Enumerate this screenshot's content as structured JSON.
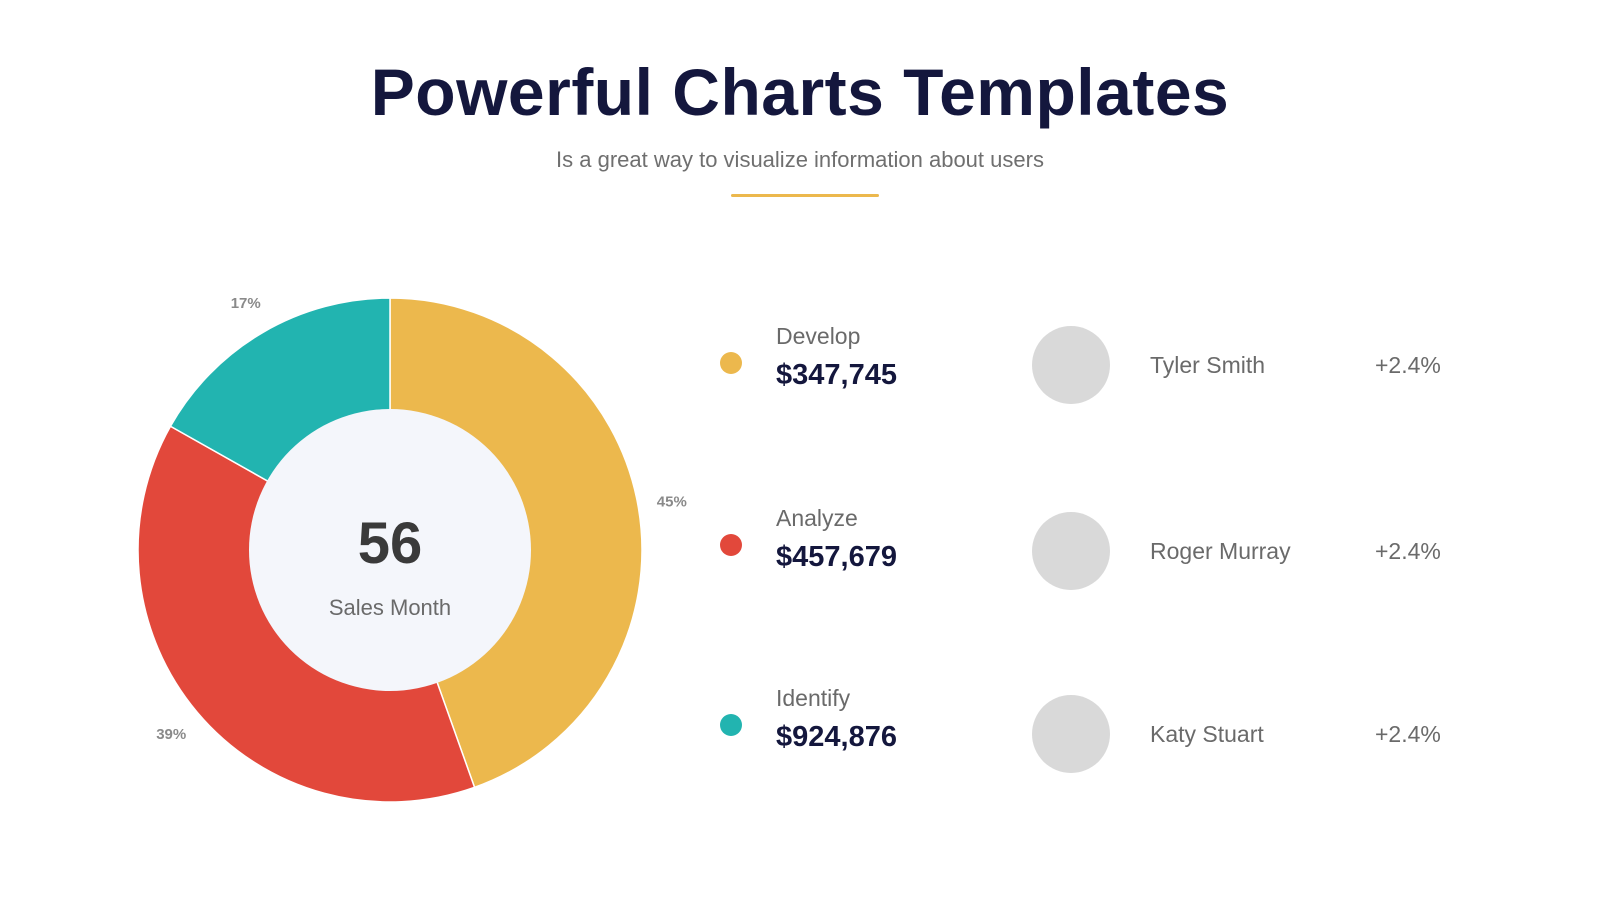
{
  "header": {
    "title": "Powerful Charts Templates",
    "subtitle": "Is a great way to visualize information about users"
  },
  "colors": {
    "develop": "#ecb84d",
    "analyze": "#e2483b",
    "identify": "#22b4b0",
    "center": "#f4f6fb",
    "label": "#8a8a8a"
  },
  "chart_data": {
    "type": "pie",
    "variant": "donut",
    "categories": [
      "Develop",
      "Analyze",
      "Identify"
    ],
    "values": [
      45,
      39,
      17
    ],
    "data_labels": [
      "45%",
      "39%",
      "17%"
    ],
    "center": {
      "value": "56",
      "label": "Sales Month"
    }
  },
  "legend": [
    {
      "label": "Develop",
      "value": "$347,745"
    },
    {
      "label": "Analyze",
      "value": "$457,679"
    },
    {
      "label": "Identify",
      "value": "$924,876"
    }
  ],
  "people": [
    {
      "name": "Tyler Smith",
      "change": "+2.4%"
    },
    {
      "name": "Roger Murray",
      "change": "+2.4%"
    },
    {
      "name": "Katy Stuart",
      "change": "+2.4%"
    }
  ]
}
